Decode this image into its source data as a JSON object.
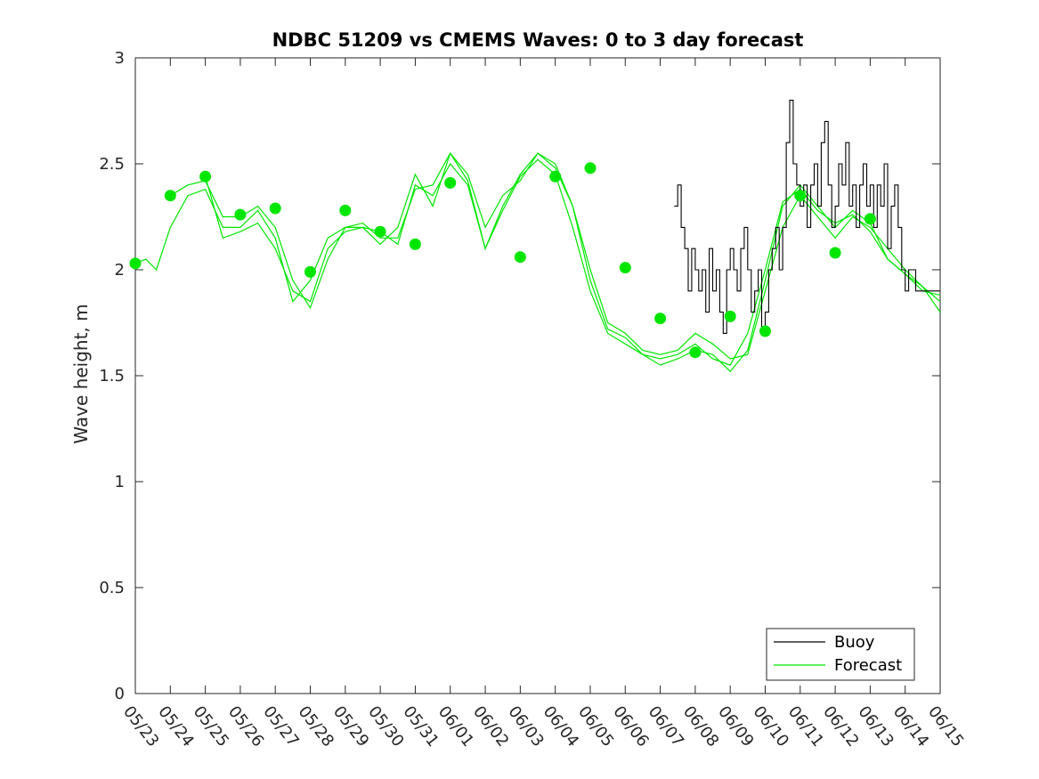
{
  "chart_data": {
    "type": "line",
    "title": "NDBC 51209 vs CMEMS Waves: 0 to 3 day forecast",
    "xlabel": "",
    "ylabel": "Wave height, m",
    "x_ticks": [
      "05/23",
      "05/24",
      "05/25",
      "05/26",
      "05/27",
      "05/28",
      "05/29",
      "05/30",
      "05/31",
      "06/01",
      "06/02",
      "06/03",
      "06/04",
      "06/05",
      "06/06",
      "06/07",
      "06/08",
      "06/09",
      "06/10",
      "06/11",
      "06/12",
      "06/13",
      "06/14",
      "06/15"
    ],
    "y_ticks": [
      "0",
      "0.5",
      "1",
      "1.5",
      "2",
      "2.5",
      "3"
    ],
    "ylim": [
      0,
      3
    ],
    "grid": false,
    "legend": {
      "position": "bottom-right",
      "entries": [
        "Buoy",
        "Forecast"
      ]
    },
    "colors": {
      "buoy": "#000000",
      "forecast": "#00e600",
      "axes": "#262626"
    },
    "series": [
      {
        "name": "Buoy",
        "x": [
          15.4,
          15.5,
          15.6,
          15.7,
          15.8,
          15.9,
          16.0,
          16.1,
          16.2,
          16.3,
          16.4,
          16.5,
          16.6,
          16.7,
          16.8,
          16.9,
          17.0,
          17.1,
          17.2,
          17.3,
          17.4,
          17.5,
          17.6,
          17.7,
          17.8,
          17.9,
          18.0,
          18.1,
          18.2,
          18.3,
          18.4,
          18.5,
          18.6,
          18.7,
          18.8,
          18.9,
          19.0,
          19.1,
          19.2,
          19.3,
          19.4,
          19.5,
          19.6,
          19.7,
          19.8,
          19.9,
          20.0,
          20.1,
          20.2,
          20.3,
          20.4,
          20.5,
          20.6,
          20.7,
          20.8,
          20.9,
          21.0,
          21.1,
          21.2,
          21.3,
          21.4,
          21.5,
          21.6,
          21.7,
          21.8,
          21.9,
          22.0,
          22.1,
          22.2,
          22.3,
          22.4,
          22.5,
          22.6,
          22.7,
          22.8,
          22.9,
          23.0
        ],
        "values": [
          2.3,
          2.4,
          2.2,
          2.1,
          1.9,
          2.1,
          2.0,
          1.9,
          2.0,
          1.8,
          2.1,
          1.9,
          2.0,
          1.8,
          1.7,
          2.0,
          2.1,
          2.0,
          1.9,
          2.1,
          2.2,
          2.0,
          1.8,
          1.9,
          2.0,
          1.7,
          1.8,
          2.0,
          2.1,
          2.2,
          2.0,
          2.2,
          2.6,
          2.8,
          2.5,
          2.4,
          2.3,
          2.4,
          2.2,
          2.4,
          2.5,
          2.3,
          2.6,
          2.7,
          2.4,
          2.2,
          2.3,
          2.5,
          2.4,
          2.6,
          2.3,
          2.4,
          2.2,
          2.4,
          2.5,
          2.3,
          2.4,
          2.2,
          2.4,
          2.3,
          2.5,
          2.1,
          2.3,
          2.4,
          2.2,
          2.0,
          1.9,
          2.0,
          2.0,
          1.9,
          1.9,
          1.9,
          1.9,
          1.9,
          1.9,
          1.9,
          1.9
        ]
      },
      {
        "name": "Forecast",
        "x": [
          0,
          0.3,
          0.6,
          1,
          1.5,
          2,
          2.5,
          3,
          3.5,
          4,
          4.5,
          5,
          5.5,
          6,
          6.5,
          7,
          7.5,
          8,
          8.5,
          9,
          9.5,
          10,
          10.5,
          11,
          11.5,
          12,
          12.5,
          13,
          13.5,
          14,
          14.5,
          15,
          15.5,
          16,
          16.5,
          17,
          17.5,
          18,
          18.5,
          19,
          19.5,
          20,
          20.5,
          21,
          21.5,
          22,
          22.5,
          23
        ],
        "values": [
          2.03,
          2.05,
          2.0,
          2.2,
          2.35,
          2.38,
          2.2,
          2.2,
          2.28,
          2.15,
          1.85,
          1.95,
          2.15,
          2.2,
          2.2,
          2.12,
          2.2,
          2.45,
          2.3,
          2.55,
          2.42,
          2.1,
          2.3,
          2.45,
          2.55,
          2.5,
          2.3,
          2.0,
          1.75,
          1.7,
          1.62,
          1.6,
          1.62,
          1.7,
          1.65,
          1.58,
          1.6,
          1.9,
          2.2,
          2.35,
          2.25,
          2.15,
          2.25,
          2.2,
          2.1,
          2.0,
          1.92,
          1.85
        ]
      },
      {
        "name": "Forecast",
        "x": [
          1,
          1.5,
          2,
          2.5,
          3,
          3.5,
          4,
          4.5,
          5,
          5.5,
          6,
          6.5,
          7,
          7.5,
          8,
          8.5,
          9,
          9.5,
          10,
          10.5,
          11,
          11.5,
          12,
          12.5,
          13,
          13.5,
          14,
          14.5,
          15,
          15.5,
          16,
          16.5,
          17,
          17.5,
          18,
          18.5,
          19,
          19.5,
          20,
          20.5,
          21,
          21.5,
          22,
          22.5,
          23
        ],
        "values": [
          2.35,
          2.4,
          2.42,
          2.25,
          2.25,
          2.3,
          2.2,
          1.95,
          1.82,
          2.05,
          2.2,
          2.22,
          2.15,
          2.15,
          2.38,
          2.4,
          2.55,
          2.45,
          2.2,
          2.35,
          2.42,
          2.55,
          2.48,
          2.3,
          1.95,
          1.72,
          1.68,
          1.6,
          1.55,
          1.58,
          1.62,
          1.6,
          1.52,
          1.62,
          1.95,
          2.3,
          2.4,
          2.3,
          2.2,
          2.28,
          2.22,
          2.05,
          1.98,
          1.9,
          1.88
        ]
      },
      {
        "name": "Forecast",
        "x": [
          2,
          2.5,
          3,
          3.5,
          4,
          4.5,
          5,
          5.5,
          6,
          6.5,
          7,
          7.5,
          8,
          8.5,
          9,
          9.5,
          10,
          10.5,
          11,
          11.5,
          12,
          12.5,
          13,
          13.5,
          14,
          14.5,
          15,
          15.5,
          16,
          16.5,
          17,
          17.5,
          18,
          18.5,
          19,
          19.5,
          20,
          20.5,
          21,
          21.5,
          22,
          22.5,
          23
        ],
        "values": [
          2.44,
          2.15,
          2.18,
          2.22,
          2.1,
          1.9,
          1.85,
          2.1,
          2.18,
          2.2,
          2.18,
          2.12,
          2.4,
          2.35,
          2.5,
          2.4,
          2.1,
          2.28,
          2.44,
          2.52,
          2.45,
          2.2,
          1.9,
          1.7,
          1.65,
          1.6,
          1.58,
          1.6,
          1.65,
          1.58,
          1.55,
          1.7,
          2.0,
          2.32,
          2.38,
          2.28,
          2.22,
          2.26,
          2.18,
          2.05,
          1.98,
          1.92,
          1.8
        ]
      }
    ],
    "markers": {
      "name": "Forecast",
      "x": [
        0,
        1,
        2,
        3,
        4,
        5,
        6,
        7,
        8,
        9,
        11,
        12,
        13,
        14,
        15,
        16,
        17,
        18,
        19,
        20,
        21
      ],
      "values": [
        2.03,
        2.35,
        2.44,
        2.26,
        2.29,
        1.99,
        2.28,
        2.18,
        2.12,
        2.41,
        2.06,
        2.44,
        2.48,
        2.01,
        1.77,
        1.61,
        1.78,
        1.71,
        2.35,
        2.08,
        2.24
      ]
    }
  }
}
